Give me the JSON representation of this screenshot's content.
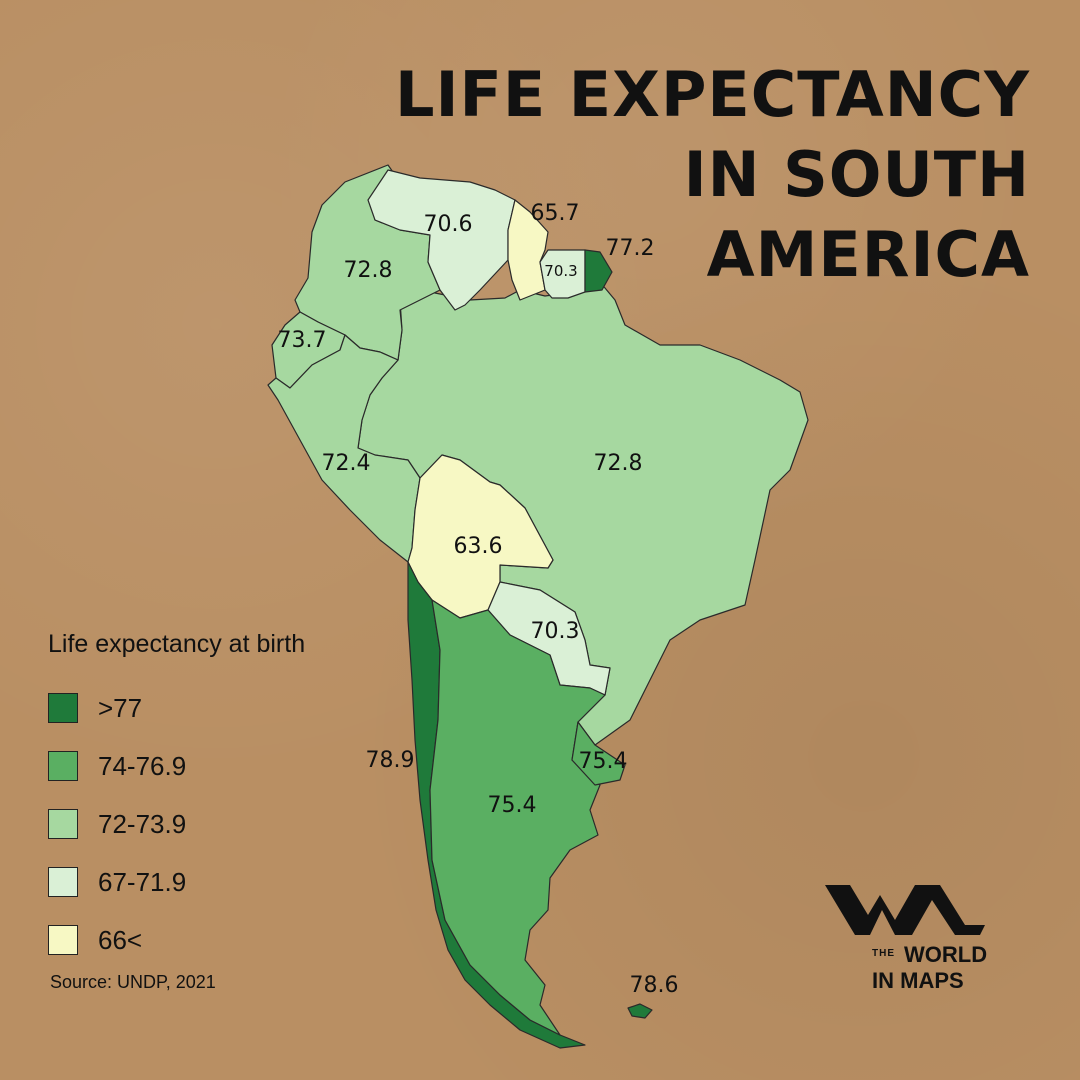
{
  "title": [
    "LIFE EXPECTANCY",
    "IN SOUTH",
    "AMERICA"
  ],
  "legend": {
    "title": "Life expectancy at birth",
    "items": [
      {
        "label": ">77",
        "color": "#1f7a3a"
      },
      {
        "label": "74-76.9",
        "color": "#5aaf62"
      },
      {
        "label": "72-73.9",
        "color": "#a6d8a0"
      },
      {
        "label": "67-71.9",
        "color": "#daf0d6"
      },
      {
        "label": "66<",
        "color": "#f7f8c4"
      }
    ]
  },
  "source": "Source: UNDP, 2021",
  "brand": {
    "the": "THE",
    "world": "WORLD",
    "maps": "IN MAPS"
  },
  "regions": [
    {
      "id": "colombia",
      "value": "72.8",
      "color": "#a6d8a0"
    },
    {
      "id": "venezuela",
      "value": "70.6",
      "color": "#daf0d6"
    },
    {
      "id": "guyana",
      "value": "65.7",
      "color": "#f7f8c4"
    },
    {
      "id": "suriname",
      "value": "70.3",
      "color": "#daf0d6"
    },
    {
      "id": "french-guiana",
      "value": "77.2",
      "color": "#1f7a3a"
    },
    {
      "id": "ecuador",
      "value": "73.7",
      "color": "#a6d8a0"
    },
    {
      "id": "peru",
      "value": "72.4",
      "color": "#a6d8a0"
    },
    {
      "id": "brazil",
      "value": "72.8",
      "color": "#a6d8a0"
    },
    {
      "id": "bolivia",
      "value": "63.6",
      "color": "#f7f8c4"
    },
    {
      "id": "paraguay",
      "value": "70.3",
      "color": "#daf0d6"
    },
    {
      "id": "chile",
      "value": "78.9",
      "color": "#1f7a3a"
    },
    {
      "id": "argentina",
      "value": "75.4",
      "color": "#5aaf62"
    },
    {
      "id": "uruguay",
      "value": "75.4",
      "color": "#5aaf62"
    },
    {
      "id": "falklands",
      "value": "78.6",
      "color": "#1f7a3a"
    }
  ]
}
